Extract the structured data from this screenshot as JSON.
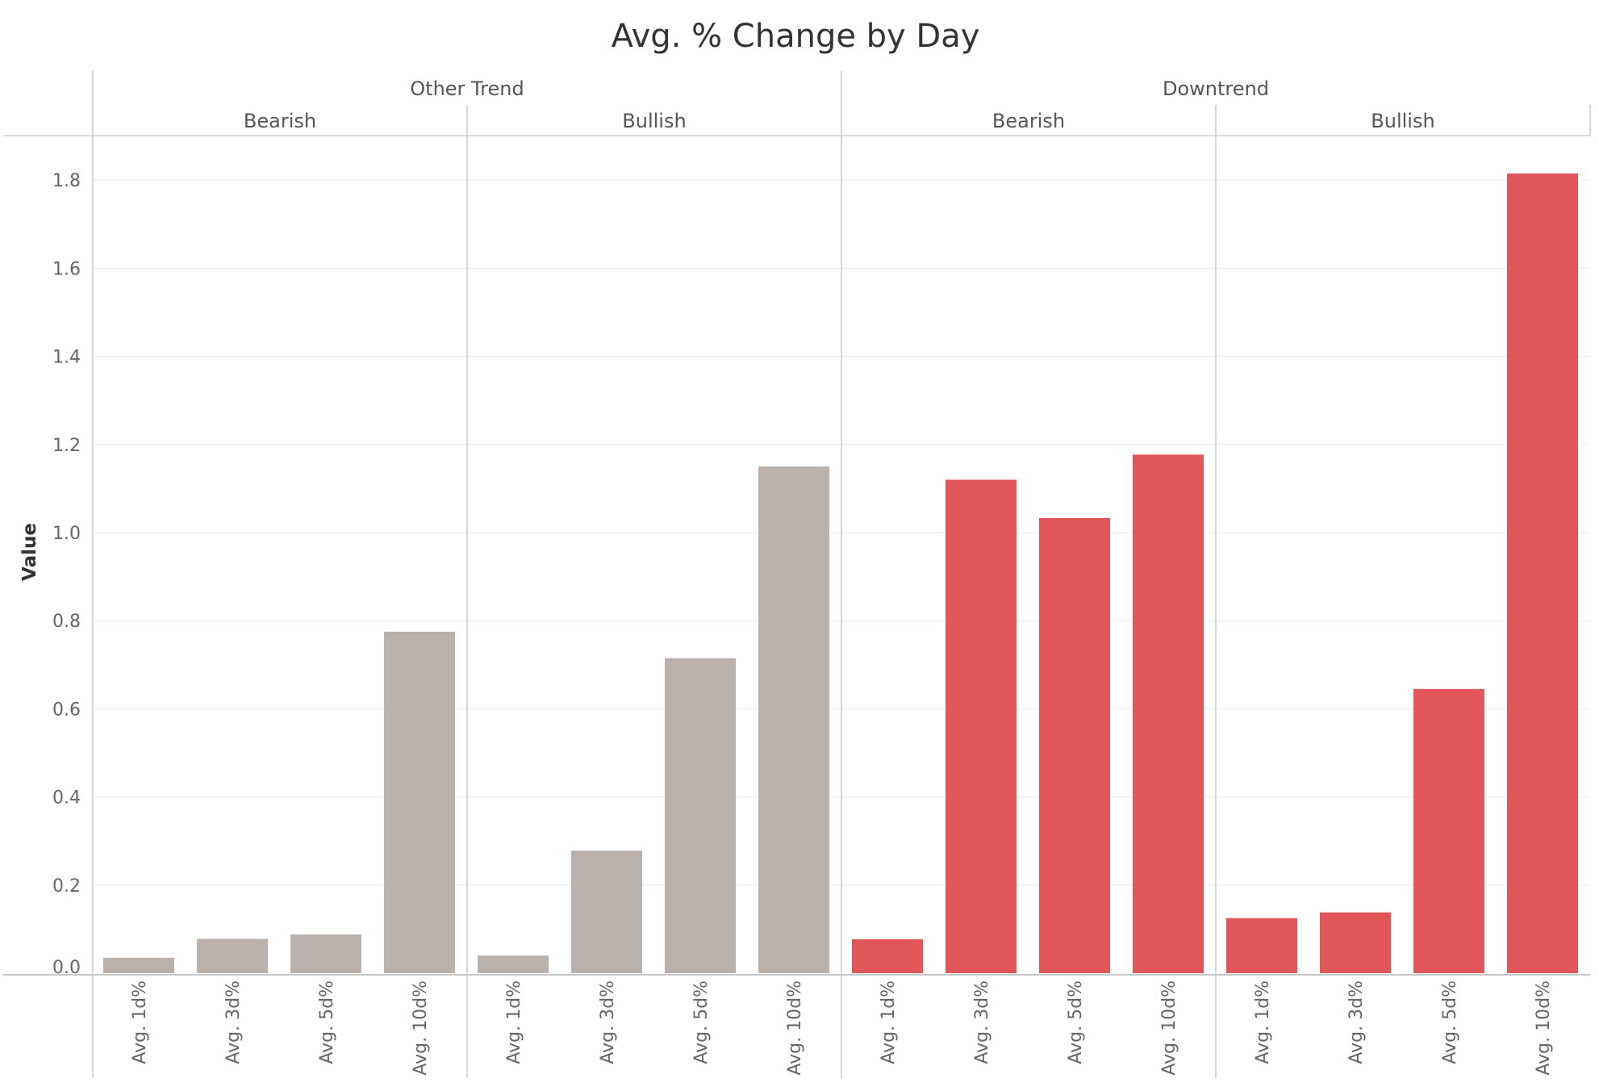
{
  "chart_data": {
    "type": "bar",
    "title": "Avg. % Change by Day",
    "ylabel": "Value",
    "ylim": [
      0,
      1.9
    ],
    "yticks": [
      "0.0",
      "0.2",
      "0.4",
      "0.6",
      "0.8",
      "1.0",
      "1.2",
      "1.4",
      "1.6",
      "1.8"
    ],
    "grid": true,
    "categories": [
      "Avg. 1d%",
      "Avg. 3d%",
      "Avg. 5d%",
      "Avg. 10d%"
    ],
    "groups": [
      {
        "label": "Other Trend",
        "color": "#bab0ac",
        "subgroups": [
          {
            "label": "Bearish",
            "values": [
              0.035,
              0.078,
              0.088,
              0.775
            ]
          },
          {
            "label": "Bullish",
            "values": [
              0.04,
              0.278,
              0.715,
              1.15
            ]
          }
        ]
      },
      {
        "label": "Downtrend",
        "color": "#e15759",
        "subgroups": [
          {
            "label": "Bearish",
            "values": [
              0.077,
              1.12,
              1.033,
              1.177
            ]
          },
          {
            "label": "Bullish",
            "values": [
              0.125,
              0.138,
              0.645,
              1.815
            ]
          }
        ]
      }
    ]
  }
}
